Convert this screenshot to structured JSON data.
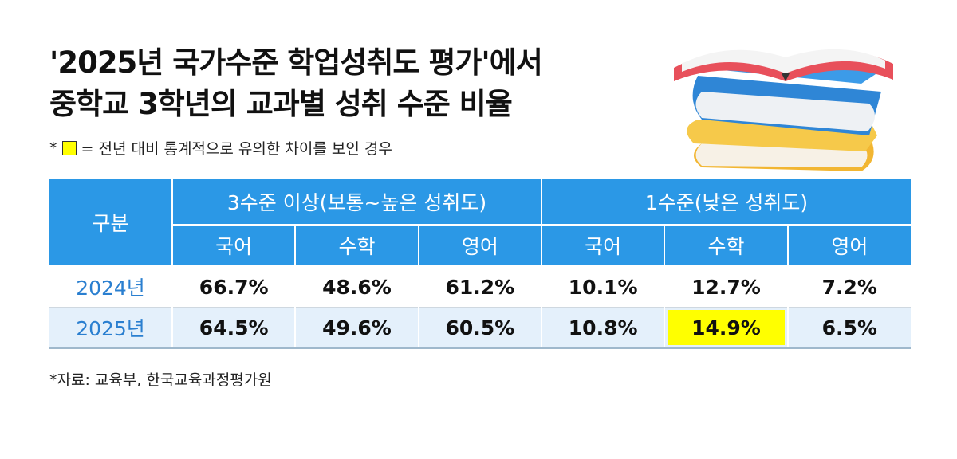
{
  "header": {
    "title": [
      "'2025년 국가수준 학업성취도 평가'에서",
      "중학교 3학년의 교과별 성취 수준 비율"
    ]
  },
  "note": {
    "prefix": "*",
    "text": "= 전년 대비 통계적으로 유의한 차이를 보인 경우",
    "color": "#ffff00"
  },
  "table": {
    "corner": "구분",
    "groups": [
      "3수준 이상(보통~높은 성취도)",
      "1수준(낮은 성취도)"
    ],
    "subjects": [
      "국어",
      "수학",
      "영어",
      "국어",
      "수학",
      "영어"
    ],
    "rows": [
      {
        "label": "2024년",
        "cells": [
          "66.7%",
          "48.6%",
          "61.2%",
          "10.1%",
          "12.7%",
          "7.2%"
        ],
        "highlighted": []
      },
      {
        "label": "2025년",
        "cells": [
          "64.5%",
          "49.6%",
          "60.5%",
          "10.8%",
          "14.9%",
          "6.5%"
        ],
        "highlighted": [
          4
        ]
      }
    ]
  },
  "source": "*자료: 교육부, 한국교육과정평가원"
}
